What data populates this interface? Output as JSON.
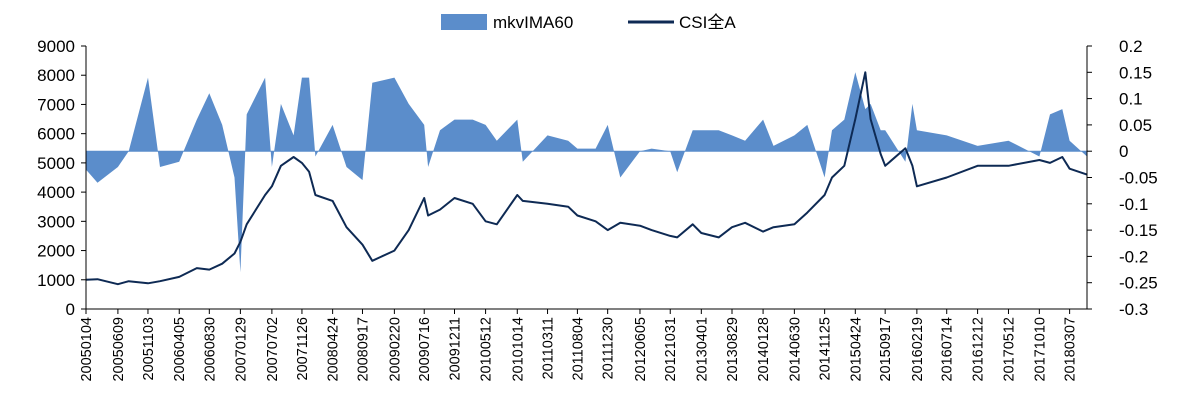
{
  "chart_data": {
    "type": "area+line",
    "title": "",
    "legend": {
      "placement": "top-center",
      "items": [
        {
          "name": "mkvIMA60",
          "kind": "area",
          "color": "#5b8dcb"
        },
        {
          "name": "CSI全A",
          "kind": "line",
          "color": "#0e2a54"
        }
      ]
    },
    "x_axis": {
      "type": "date",
      "range_yyyymmdd": [
        "20050104",
        "20180531"
      ],
      "tick_labels": [
        "20050104",
        "20050609",
        "20051103",
        "20060405",
        "20060830",
        "20070129",
        "20070702",
        "20071126",
        "20080424",
        "20080917",
        "20090220",
        "20090716",
        "20091211",
        "20100512",
        "20101014",
        "20110311",
        "20110804",
        "20111230",
        "20120605",
        "20121031",
        "20130401",
        "20130829",
        "20140128",
        "20140630",
        "20141125",
        "20150424",
        "20150917",
        "20160219",
        "20160714",
        "20161212",
        "20170512",
        "20171010",
        "20180307"
      ]
    },
    "y_left": {
      "min": 0,
      "max": 9000,
      "step": 1000,
      "tick_labels": [
        "0",
        "1000",
        "2000",
        "3000",
        "4000",
        "5000",
        "6000",
        "7000",
        "8000",
        "9000"
      ]
    },
    "y_right": {
      "min": -0.3,
      "max": 0.2,
      "step": 0.05,
      "tick_labels": [
        "-0.3",
        "-0.25",
        "-0.2",
        "-0.15",
        "-0.1",
        "-0.05",
        "0",
        "0.05",
        "0.1",
        "0.15",
        "0.2"
      ]
    },
    "series": [
      {
        "name": "CSI全A",
        "axis": "left",
        "x": [
          "20050104",
          "20050301",
          "20050609",
          "20050801",
          "20051103",
          "20060101",
          "20060405",
          "20060630",
          "20060830",
          "20061101",
          "20061231",
          "20070129",
          "20070301",
          "20070530",
          "20070702",
          "20070815",
          "20071016",
          "20071126",
          "20071231",
          "20080131",
          "20080424",
          "20080701",
          "20080917",
          "20081104",
          "20090220",
          "20090501",
          "20090716",
          "20090804",
          "20091001",
          "20091211",
          "20100310",
          "20100512",
          "20100706",
          "20101014",
          "20101110",
          "20110311",
          "20110620",
          "20110804",
          "20111101",
          "20111230",
          "20120301",
          "20120605",
          "20120801",
          "20121031",
          "20121204",
          "20130218",
          "20130401",
          "20130625",
          "20130829",
          "20131101",
          "20140128",
          "20140320",
          "20140630",
          "20140901",
          "20141125",
          "20141231",
          "20150301",
          "20150424",
          "20150612",
          "20150708",
          "20150826",
          "20150917",
          "20151225",
          "20160128",
          "20160219",
          "20160714",
          "20161212",
          "20170512",
          "20171010",
          "20171201",
          "20180130",
          "20180307",
          "20180531"
        ],
        "values": [
          1000,
          1020,
          850,
          950,
          880,
          950,
          1100,
          1400,
          1350,
          1550,
          1900,
          2300,
          2900,
          3900,
          4200,
          4900,
          5200,
          5000,
          4700,
          3900,
          3700,
          2800,
          2200,
          1650,
          2000,
          2700,
          3800,
          3200,
          3400,
          3800,
          3600,
          3000,
          2900,
          3900,
          3700,
          3600,
          3500,
          3200,
          3000,
          2700,
          2950,
          2850,
          2700,
          2500,
          2450,
          2900,
          2600,
          2450,
          2800,
          2950,
          2650,
          2800,
          2900,
          3300,
          3900,
          4500,
          4900,
          6500,
          8100,
          6500,
          5300,
          4900,
          5500,
          4900,
          4200,
          4500,
          4900,
          4900,
          5100,
          5000,
          5200,
          4800,
          4600
        ]
      },
      {
        "name": "mkvIMA60",
        "axis": "right",
        "x": [
          "20050104",
          "20050301",
          "20050609",
          "20050801",
          "20051103",
          "20060101",
          "20060405",
          "20060630",
          "20060830",
          "20061101",
          "20061231",
          "20070129",
          "20070301",
          "20070530",
          "20070702",
          "20070815",
          "20071016",
          "20071126",
          "20071231",
          "20080131",
          "20080424",
          "20080701",
          "20080917",
          "20081104",
          "20090220",
          "20090501",
          "20090716",
          "20090804",
          "20091001",
          "20091211",
          "20100310",
          "20100512",
          "20100706",
          "20101014",
          "20101110",
          "20110311",
          "20110620",
          "20110804",
          "20111101",
          "20111230",
          "20120301",
          "20120605",
          "20120801",
          "20121031",
          "20121204",
          "20130218",
          "20130401",
          "20130625",
          "20130829",
          "20131101",
          "20140128",
          "20140320",
          "20140630",
          "20140901",
          "20141125",
          "20141231",
          "20150301",
          "20150424",
          "20150612",
          "20150708",
          "20150826",
          "20150917",
          "20151225",
          "20160128",
          "20160219",
          "20160714",
          "20161212",
          "20170512",
          "20171010",
          "20171201",
          "20180130",
          "20180307",
          "20180531"
        ],
        "values": [
          -0.035,
          -0.06,
          -0.03,
          0.0,
          0.14,
          -0.03,
          -0.02,
          0.06,
          0.11,
          0.05,
          -0.05,
          -0.23,
          0.07,
          0.14,
          -0.03,
          0.09,
          0.03,
          0.14,
          0.14,
          -0.01,
          0.05,
          -0.03,
          -0.055,
          0.13,
          0.14,
          0.09,
          0.05,
          -0.03,
          0.04,
          0.06,
          0.06,
          0.05,
          0.02,
          0.06,
          -0.02,
          0.03,
          0.02,
          0.005,
          0.005,
          0.05,
          -0.05,
          0.0,
          0.005,
          0.0,
          -0.04,
          0.04,
          0.04,
          0.04,
          0.03,
          0.02,
          0.06,
          0.01,
          0.03,
          0.05,
          -0.05,
          0.04,
          0.06,
          0.15,
          0.08,
          0.09,
          0.04,
          0.04,
          -0.02,
          0.09,
          0.04,
          0.03,
          0.01,
          0.02,
          -0.01,
          0.07,
          0.08,
          0.02,
          -0.01
        ]
      }
    ]
  }
}
